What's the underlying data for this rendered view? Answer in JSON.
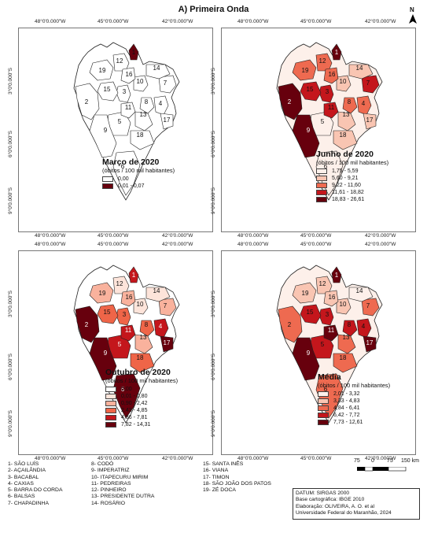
{
  "title": "A) Primeira Onda",
  "north_label": "N",
  "ticks_x": [
    "48°0'0.000\"W",
    "45°0'0.000\"W",
    "42°0'0.000\"W"
  ],
  "ticks_y": [
    "3°0'0.000\"S",
    "6°0'0.000\"S",
    "9°0'0.000\"S"
  ],
  "legend_subtitle": "(óbitos / 100 mil habitantes)",
  "panels": [
    {
      "title": "Março de 2020",
      "classes": [
        {
          "label": "0,00",
          "color": "#ffffff"
        },
        {
          "label": "0,01 - 0,07",
          "color": "#67000d"
        }
      ]
    },
    {
      "title": "Junho de 2020",
      "classes": [
        {
          "label": "1,75 - 5,59",
          "color": "#fdf0ea"
        },
        {
          "label": "5,60 - 9,21",
          "color": "#f9c5b2"
        },
        {
          "label": "9,22 - 11,60",
          "color": "#ee6a50"
        },
        {
          "label": "11,61 - 18,82",
          "color": "#c4161c"
        },
        {
          "label": "18,83 - 26,61",
          "color": "#67000d"
        }
      ]
    },
    {
      "title": "Outubro de 2020",
      "classes": [
        {
          "label": "0,00",
          "color": "#ffffff"
        },
        {
          "label": "0,01 - 0,80",
          "color": "#fde4da"
        },
        {
          "label": "0,90 - 2,42",
          "color": "#f9b29d"
        },
        {
          "label": "2,43 - 4,85",
          "color": "#ef6548"
        },
        {
          "label": "4,86 - 7,81",
          "color": "#c4161c"
        },
        {
          "label": "7,82 - 14,31",
          "color": "#67000d"
        }
      ]
    },
    {
      "title": "Média",
      "classes": [
        {
          "label": "2,01 - 3,32",
          "color": "#fdf0ea"
        },
        {
          "label": "3,33 - 4,83",
          "color": "#f9c5b2"
        },
        {
          "label": "4,84 - 6,41",
          "color": "#ee6a50"
        },
        {
          "label": "6,42 - 7,72",
          "color": "#c4161c"
        },
        {
          "label": "7,73 - 12,61",
          "color": "#67000d"
        }
      ]
    }
  ],
  "map_labels": [
    "1",
    "2",
    "3",
    "4",
    "5",
    "6",
    "7",
    "8",
    "9",
    "10",
    "11",
    "12",
    "13",
    "14",
    "15",
    "16",
    "17",
    "18",
    "19"
  ],
  "municipalities_col1": [
    "1- SÃO LUÍS",
    "2- AÇAILÂNDIA",
    "3- BACABAL",
    "4- CAXIAS",
    "5- BARRA DO CORDA",
    "6- BALSAS",
    "7- CHAPADINHA"
  ],
  "municipalities_col2": [
    "8- CODÓ",
    "9- IMPERATRIZ",
    "10- ITAPECURU MIRIM",
    "11- PEDREIRAS",
    "12- PINHEIRO",
    "13- PRESIDENTE DUTRA",
    "14- ROSÁRIO"
  ],
  "municipalities_col3": [
    "15- SANTA INÊS",
    "16- VIANA",
    "17- TIMON",
    "18- SÃO JOÃO DOS PATOS",
    "19- ZÉ DOCA"
  ],
  "scale": {
    "labels": [
      "75",
      "0",
      "75",
      "150 km"
    ]
  },
  "credits": [
    "DATUM: SIRGAS 2000",
    "Base cartográfica: IBGE 2010",
    "Elaboração: OLIVEIRA, A. O.  et al",
    "Universidade Federal do Maranhão, 2024"
  ]
}
